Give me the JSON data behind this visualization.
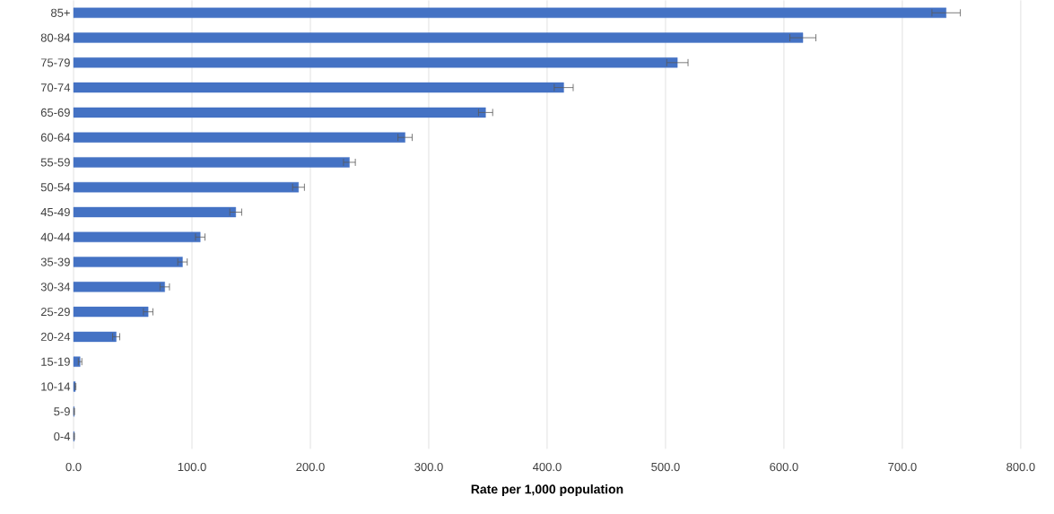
{
  "chart_data": {
    "type": "bar",
    "orientation": "horizontal",
    "xlabel": "Rate per 1,000 population",
    "categories": [
      "85+",
      "80-84",
      "75-79",
      "70-74",
      "65-69",
      "60-64",
      "55-59",
      "50-54",
      "45-49",
      "40-44",
      "35-39",
      "30-34",
      "25-29",
      "20-24",
      "15-19",
      "10-14",
      "5-9",
      "0-4"
    ],
    "values": [
      737,
      616,
      510,
      414,
      348,
      280,
      233,
      190,
      137,
      107,
      92,
      77,
      63,
      36,
      5.5,
      1.5,
      0.5,
      0.5
    ],
    "errors": [
      12,
      11,
      9,
      8,
      6,
      6,
      5,
      5,
      5,
      4,
      4,
      4,
      4,
      3,
      1.5,
      0.5,
      0.3,
      0.3
    ],
    "color": "#4472c4",
    "xlim": [
      0,
      800
    ],
    "xticks": [
      {
        "value": 0,
        "label": "0.0"
      },
      {
        "value": 100,
        "label": "100.0"
      },
      {
        "value": 200,
        "label": "200.0"
      },
      {
        "value": 300,
        "label": "300.0"
      },
      {
        "value": 400,
        "label": "400.0"
      },
      {
        "value": 500,
        "label": "500.0"
      },
      {
        "value": 600,
        "label": "600.0"
      },
      {
        "value": 700,
        "label": "700.0"
      },
      {
        "value": 800,
        "label": "800.0"
      }
    ],
    "grid": "x"
  }
}
